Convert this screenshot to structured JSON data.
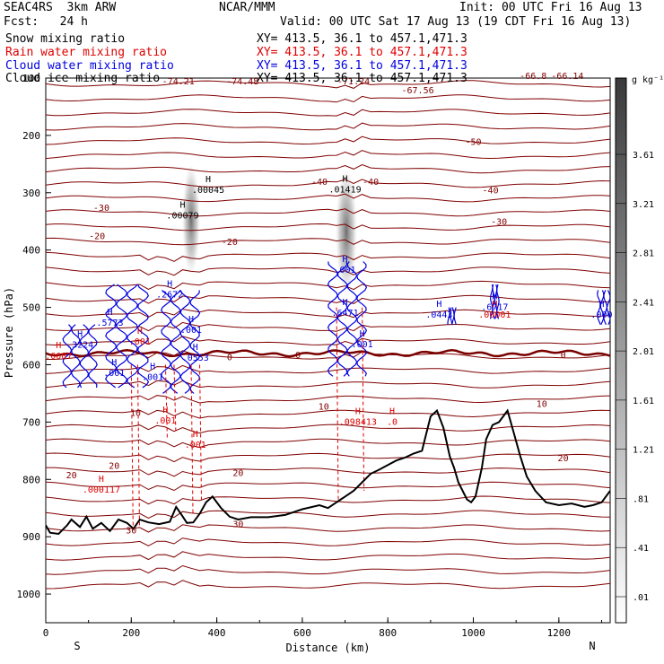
{
  "header": {
    "model": "SEAC4RS  3km ARW",
    "center": "NCAR/MMM",
    "init": "Init: 00 UTC Fri 16 Aug 13",
    "fcst": "Fcst:   24 h",
    "valid": "Valid: 00 UTC Sat 17 Aug 13 (19 CDT Fri 16 Aug 13)",
    "fields": [
      {
        "name": "Snow mixing ratio",
        "color": "#000000",
        "xy": "XY= 413.5, 36.1 to 457.1,471.3"
      },
      {
        "name": "Rain water mixing ratio",
        "color": "#e00000",
        "xy": "XY= 413.5, 36.1 to 457.1,471.3"
      },
      {
        "name": "Cloud water mixing ratio",
        "color": "#0000e0",
        "xy": "XY= 413.5, 36.1 to 457.1,471.3"
      },
      {
        "name": "Cloud ice mixing ratio",
        "color": "#000000",
        "xy": "XY= 413.5, 36.1 to 457.1,471.3"
      }
    ]
  },
  "chart_data": {
    "type": "heatmap",
    "xlabel": "Distance (km)",
    "ylabel": "Pressure (hPa)",
    "xlim": [
      0,
      1320
    ],
    "ylim": [
      100,
      1050
    ],
    "x_ticks": [
      0,
      200,
      400,
      600,
      800,
      1000,
      1200
    ],
    "y_ticks": [
      100,
      200,
      300,
      400,
      500,
      600,
      700,
      800,
      900,
      1000
    ],
    "x_end_labels": {
      "left": "S",
      "right": "N"
    },
    "colorbar": {
      "unit": "g kg⁻¹",
      "levels": [
        "3.61",
        "3.21",
        "2.81",
        "2.41",
        "2.01",
        "1.61",
        "1.21",
        ".81",
        ".41",
        ".01"
      ]
    },
    "temperature_contours": {
      "color": "#800000",
      "zero_color": "#7a0000",
      "labels": [
        {
          "text": "-74.21",
          "x": 310,
          "p": 105
        },
        {
          "text": "-74.48",
          "x": 460,
          "p": 105
        },
        {
          "text": "-71.24",
          "x": 720,
          "p": 105
        },
        {
          "text": "-67.56",
          "x": 870,
          "p": 120
        },
        {
          "text": "-66.8",
          "x": 1140,
          "p": 95
        },
        {
          "text": "-66.14",
          "x": 1220,
          "p": 95
        },
        {
          "text": "-50",
          "x": 1000,
          "p": 210
        },
        {
          "text": "-40",
          "x": 640,
          "p": 280
        },
        {
          "text": "-40",
          "x": 760,
          "p": 280
        },
        {
          "text": "-40",
          "x": 1040,
          "p": 295
        },
        {
          "text": "-30",
          "x": 130,
          "p": 325
        },
        {
          "text": "-30",
          "x": 1060,
          "p": 350
        },
        {
          "text": "-20",
          "x": 120,
          "p": 375
        },
        {
          "text": "-20",
          "x": 430,
          "p": 385
        },
        {
          "text": "0",
          "x": 430,
          "p": 586
        },
        {
          "text": "0",
          "x": 590,
          "p": 582
        },
        {
          "text": "0",
          "x": 1210,
          "p": 582
        },
        {
          "text": "10",
          "x": 210,
          "p": 683
        },
        {
          "text": "10",
          "x": 650,
          "p": 672
        },
        {
          "text": "10",
          "x": 1160,
          "p": 667
        },
        {
          "text": "20",
          "x": 60,
          "p": 792
        },
        {
          "text": "20",
          "x": 160,
          "p": 775
        },
        {
          "text": "20",
          "x": 450,
          "p": 788
        },
        {
          "text": "20",
          "x": 1210,
          "p": 762
        },
        {
          "text": "30",
          "x": 200,
          "p": 888
        },
        {
          "text": "30",
          "x": 450,
          "p": 877
        }
      ]
    },
    "snow_maxima": [
      {
        "text": ".00045",
        "x": 380,
        "p": 296
      },
      {
        "text": ".00079",
        "x": 320,
        "p": 340
      },
      {
        "text": ".01419",
        "x": 700,
        "p": 295
      }
    ],
    "rain_maxima": [
      {
        "text": ".000117",
        "x": 130,
        "p": 818
      },
      {
        "text": ".098413",
        "x": 730,
        "p": 700
      },
      {
        "text": ".0",
        "x": 810,
        "p": 700
      },
      {
        "text": ".00001",
        "x": 1050,
        "p": 513
      },
      {
        "text": ".0007",
        "x": 30,
        "p": 585
      },
      {
        "text": ".001",
        "x": 280,
        "p": 698
      },
      {
        "text": ".001",
        "x": 350,
        "p": 740
      },
      {
        "text": ".001",
        "x": 220,
        "p": 560
      }
    ],
    "cloud_water_maxima": [
      {
        "text": ".3224",
        "x": 80,
        "p": 566
      },
      {
        "text": ".5773",
        "x": 150,
        "p": 527
      },
      {
        "text": ".2672",
        "x": 290,
        "p": 478
      },
      {
        "text": ".6471",
        "x": 700,
        "p": 510
      },
      {
        "text": ".0443",
        "x": 920,
        "p": 513
      },
      {
        "text": ".6717",
        "x": 1050,
        "p": 500
      },
      {
        "text": ".000",
        "x": 1300,
        "p": 513
      },
      {
        "text": ".001",
        "x": 160,
        "p": 615
      },
      {
        "text": ".001",
        "x": 250,
        "p": 622
      },
      {
        "text": ".001",
        "x": 340,
        "p": 540
      },
      {
        "text": ".001",
        "x": 700,
        "p": 435
      },
      {
        "text": ".001",
        "x": 740,
        "p": 565
      },
      {
        "text": ".0553",
        "x": 350,
        "p": 588
      }
    ],
    "terrain": [
      [
        0,
        880
      ],
      [
        10,
        893
      ],
      [
        30,
        895
      ],
      [
        50,
        880
      ],
      [
        60,
        870
      ],
      [
        80,
        883
      ],
      [
        95,
        865
      ],
      [
        110,
        886
      ],
      [
        130,
        876
      ],
      [
        150,
        890
      ],
      [
        170,
        870
      ],
      [
        190,
        876
      ],
      [
        205,
        886
      ],
      [
        220,
        870
      ],
      [
        240,
        875
      ],
      [
        265,
        878
      ],
      [
        290,
        874
      ],
      [
        305,
        848
      ],
      [
        318,
        862
      ],
      [
        330,
        876
      ],
      [
        345,
        875
      ],
      [
        360,
        860
      ],
      [
        375,
        840
      ],
      [
        390,
        830
      ],
      [
        410,
        850
      ],
      [
        430,
        865
      ],
      [
        450,
        870
      ],
      [
        480,
        866
      ],
      [
        520,
        866
      ],
      [
        560,
        862
      ],
      [
        600,
        852
      ],
      [
        640,
        845
      ],
      [
        660,
        850
      ],
      [
        680,
        840
      ],
      [
        700,
        830
      ],
      [
        720,
        820
      ],
      [
        740,
        805
      ],
      [
        760,
        790
      ],
      [
        780,
        783
      ],
      [
        800,
        775
      ],
      [
        820,
        767
      ],
      [
        840,
        762
      ],
      [
        860,
        755
      ],
      [
        880,
        750
      ],
      [
        890,
        720
      ],
      [
        900,
        690
      ],
      [
        915,
        680
      ],
      [
        930,
        710
      ],
      [
        945,
        760
      ],
      [
        955,
        780
      ],
      [
        965,
        805
      ],
      [
        975,
        820
      ],
      [
        985,
        835
      ],
      [
        995,
        840
      ],
      [
        1005,
        830
      ],
      [
        1020,
        780
      ],
      [
        1030,
        730
      ],
      [
        1045,
        705
      ],
      [
        1060,
        700
      ],
      [
        1080,
        680
      ],
      [
        1095,
        720
      ],
      [
        1110,
        760
      ],
      [
        1125,
        795
      ],
      [
        1145,
        820
      ],
      [
        1170,
        840
      ],
      [
        1200,
        845
      ],
      [
        1230,
        842
      ],
      [
        1260,
        848
      ],
      [
        1280,
        845
      ],
      [
        1300,
        840
      ],
      [
        1320,
        820
      ]
    ]
  }
}
